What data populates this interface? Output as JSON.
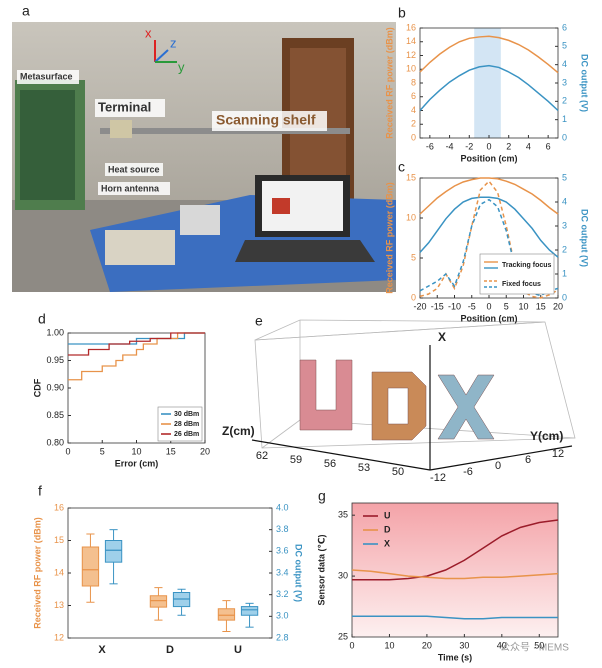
{
  "photo": {
    "label": "a",
    "annotations": [
      "Metasurface",
      "Terminal",
      "Scanning shelf",
      "Heat source",
      "Horn antenna"
    ],
    "axes": [
      "x",
      "z",
      "y"
    ]
  },
  "scene": {
    "label": "e",
    "axis_labels": {
      "x": "X",
      "z": "Z(cm)",
      "y": "Y(cm)"
    },
    "zticks": [
      "62",
      "59",
      "56",
      "53",
      "50"
    ],
    "yticks": [
      "-12",
      "-6",
      "0",
      "6",
      "12"
    ]
  },
  "watermark": "公众号 · MEMS",
  "chart_data": [
    {
      "label": "b",
      "type": "line",
      "xlabel": "Position (cm)",
      "ylabel": "Received RF power (dBm)",
      "y2label": "DC output (V)",
      "xlim": [
        -7,
        7
      ],
      "xticks": [
        -6,
        -4,
        -2,
        0,
        2,
        4,
        6
      ],
      "ylim": [
        0,
        16
      ],
      "yticks": [
        0,
        2,
        4,
        6,
        8,
        10,
        12,
        14,
        16
      ],
      "y2lim": [
        0,
        6
      ],
      "y2ticks": [
        0,
        1,
        2,
        3,
        4,
        5,
        6
      ],
      "highlight": [
        -1.5,
        1.2
      ],
      "highlight_color": "#d3e5f4",
      "x": [
        -7,
        -6,
        -5,
        -4,
        -3,
        -2,
        -1,
        0,
        1,
        2,
        3,
        4,
        5,
        6,
        7
      ],
      "series": [
        {
          "color": "#e8934a",
          "axis": "y",
          "dash": false,
          "values": [
            9.6,
            11,
            12.2,
            13.2,
            14,
            14.5,
            14.7,
            14.8,
            14.6,
            14.2,
            13.6,
            12.8,
            11.8,
            10.7,
            9.5
          ]
        },
        {
          "color": "#3a93c3",
          "axis": "y2",
          "dash": false,
          "values": [
            1.5,
            2.1,
            2.6,
            3.05,
            3.4,
            3.7,
            3.88,
            3.95,
            3.85,
            3.6,
            3.3,
            2.9,
            2.45,
            2,
            1.5
          ]
        }
      ]
    },
    {
      "label": "c",
      "type": "line",
      "xlabel": "Position (cm)",
      "ylabel": "Received RF power (dBm)",
      "y2label": "DC output (V)",
      "xlim": [
        -20,
        20
      ],
      "xticks": [
        -20,
        -15,
        -10,
        -5,
        0,
        5,
        10,
        15,
        20
      ],
      "ylim": [
        0,
        15
      ],
      "yticks": [
        0,
        5,
        10,
        15
      ],
      "y2lim": [
        0,
        5
      ],
      "y2ticks": [
        0,
        1,
        2,
        3,
        4,
        5
      ],
      "x": [
        -20,
        -17.5,
        -15,
        -12.5,
        -10,
        -7.5,
        -5,
        -2.5,
        0,
        2.5,
        5,
        7.5,
        10,
        12.5,
        15,
        17.5,
        20
      ],
      "legend": [
        {
          "label": "Tracking focus",
          "dash": false
        },
        {
          "label": "Fixed focus",
          "dash": true
        }
      ],
      "series": [
        {
          "color": "#e8934a",
          "axis": "y",
          "dash": false,
          "values": [
            10.5,
            11.5,
            12.5,
            13.3,
            14,
            14.5,
            14.8,
            15,
            15,
            14.9,
            14.6,
            14.2,
            13.6,
            13,
            12.2,
            11.3,
            10.5
          ]
        },
        {
          "color": "#3a93c3",
          "axis": "y2",
          "dash": false,
          "values": [
            1.9,
            2.3,
            2.8,
            3.3,
            3.7,
            4,
            4.15,
            4.2,
            4.2,
            4.15,
            4,
            3.7,
            3.3,
            2.9,
            2.4,
            2,
            1.7
          ]
        },
        {
          "color": "#e8934a",
          "axis": "y",
          "dash": true,
          "values": [
            0.2,
            0.5,
            1.2,
            3,
            1.2,
            4,
            9,
            13.5,
            14.6,
            13.2,
            9,
            4,
            0.8,
            0.2,
            0,
            0.4,
            1
          ]
        },
        {
          "color": "#3a93c3",
          "axis": "y2",
          "dash": true,
          "values": [
            0.3,
            0.5,
            0.7,
            1,
            0.5,
            1.5,
            3,
            3.9,
            4.1,
            3.8,
            2.8,
            1.3,
            0.4,
            0.2,
            0.1,
            0.3,
            0.4
          ]
        }
      ]
    },
    {
      "label": "d",
      "type": "step",
      "xlabel": "Error (cm)",
      "ylabel": "CDF",
      "xlim": [
        0,
        20
      ],
      "xticks": [
        0,
        5,
        10,
        15,
        20
      ],
      "ylim": [
        0.8,
        1.0
      ],
      "yticks": [
        {
          "value": 0.8,
          "label": "0.80"
        },
        0.85,
        {
          "value": 0.9,
          "label": "0.90"
        },
        0.95,
        {
          "value": 1.0,
          "label": "1.00"
        }
      ],
      "legend_corner": "lower right",
      "series": [
        {
          "name": "30 dBm",
          "color": "#3a93c3",
          "x": [
            0,
            10,
            17,
            20
          ],
          "values": [
            0.98,
            0.99,
            1.0,
            1.0
          ]
        },
        {
          "name": "28 dBm",
          "color": "#e8934a",
          "x": [
            0,
            2,
            5,
            7,
            8,
            10,
            11,
            13,
            16,
            20
          ],
          "values": [
            0.915,
            0.93,
            0.94,
            0.95,
            0.96,
            0.97,
            0.98,
            0.99,
            1.0,
            1.0
          ]
        },
        {
          "name": "26 dBm",
          "color": "#b22a2a",
          "x": [
            0,
            3,
            6,
            9,
            12,
            15,
            20
          ],
          "values": [
            0.96,
            0.97,
            0.98,
            0.985,
            0.99,
            1.0,
            1.0
          ]
        }
      ]
    },
    {
      "label": "f",
      "type": "box",
      "ylabel": "Received RF power (dBm)",
      "y2label": "DC output (V)",
      "categories": [
        "X",
        "D",
        "U"
      ],
      "ylim": [
        12,
        16
      ],
      "yticks": [
        12,
        13,
        14,
        15,
        16
      ],
      "y2lim": [
        2.8,
        4.0
      ],
      "y2ticks": [
        2.8,
        {
          "value": 3.0,
          "label": "3.0"
        },
        3.2,
        3.4,
        3.6,
        3.8,
        {
          "value": 4.0,
          "label": "4.0"
        }
      ],
      "series": [
        {
          "color": "#e8934a",
          "fill": "#f4c08f",
          "axis": "y",
          "min": [
            13.1,
            12.55,
            12.2
          ],
          "q1": [
            13.6,
            12.95,
            12.55
          ],
          "median": [
            14.1,
            13.15,
            12.7
          ],
          "q3": [
            14.8,
            13.3,
            12.9
          ],
          "max": [
            15.2,
            13.55,
            13.15
          ]
        },
        {
          "color": "#3a93c3",
          "fill": "#9fd0ea",
          "axis": "y2",
          "min": [
            3.3,
            3.01,
            2.9
          ],
          "q1": [
            3.5,
            3.09,
            3.01
          ],
          "median": [
            3.61,
            3.16,
            3.06
          ],
          "q3": [
            3.7,
            3.22,
            3.09
          ],
          "max": [
            3.8,
            3.25,
            3.12
          ]
        }
      ]
    },
    {
      "label": "g",
      "type": "line",
      "xlabel": "Time (s)",
      "ylabel": "Sensor data (℃)",
      "xlim": [
        0,
        55
      ],
      "xticks": [
        0,
        10,
        20,
        30,
        40,
        50
      ],
      "ylim": [
        25,
        36
      ],
      "yticks": [
        25,
        30,
        35
      ],
      "background": true,
      "legend_corner": "upper left",
      "x": [
        0,
        5,
        10,
        15,
        20,
        25,
        30,
        35,
        40,
        45,
        50,
        55
      ],
      "series": [
        {
          "name": "U",
          "color": "#9b1c2a",
          "axis": "y",
          "values": [
            29.7,
            29.7,
            29.7,
            29.8,
            30,
            30.5,
            31.3,
            32.3,
            33.3,
            34,
            34.4,
            34.6
          ]
        },
        {
          "name": "D",
          "color": "#e8934a",
          "axis": "y",
          "values": [
            30.5,
            30.4,
            30.2,
            30.0,
            29.9,
            29.8,
            29.8,
            29.9,
            29.9,
            30,
            30.1,
            30.2
          ]
        },
        {
          "name": "X",
          "color": "#3a93c3",
          "axis": "y",
          "values": [
            26.7,
            26.7,
            26.7,
            26.7,
            26.7,
            26.6,
            26.5,
            26.5,
            26.6,
            26.6,
            26.6,
            26.6
          ]
        }
      ]
    }
  ]
}
